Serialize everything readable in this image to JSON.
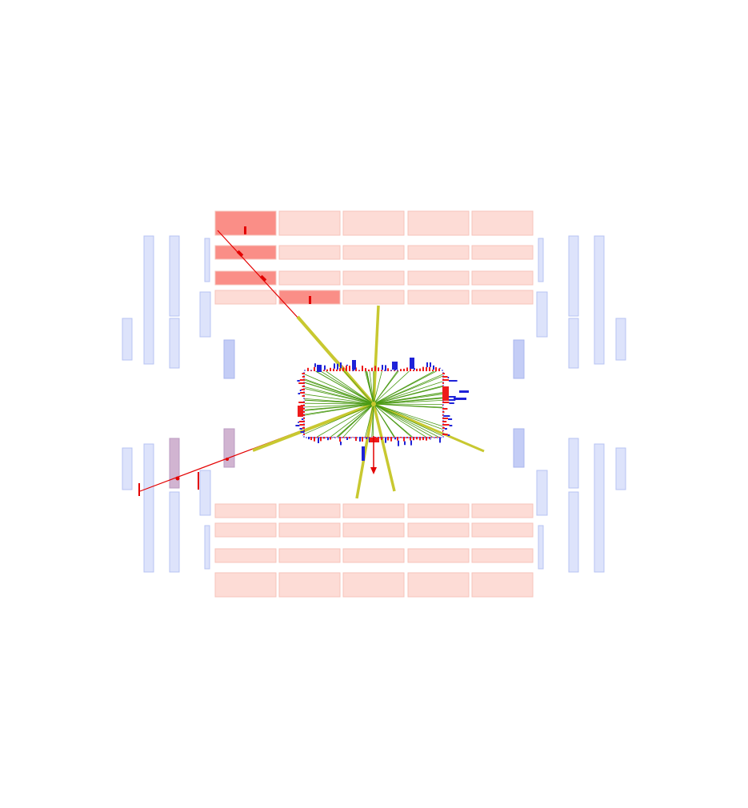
{
  "colors": {
    "background": "#ffffff",
    "muon_chamber": "#dde3fb",
    "muon_chamber_stroke": "#b7c3f3",
    "muon_chamber_dark": "#c4cdf6",
    "muon_hit_chamber": "#c9a7c9",
    "calo_cell": "#fddcd6",
    "calo_cell_stroke": "#f6c3bb",
    "calo_cell_hit": "#fa8e87",
    "muon_track": "#e30000",
    "jet": "#c8c830",
    "track": "#4b9a14",
    "ecal_deposit": "#ee1b1b",
    "hcal_deposit": "#1e22d8",
    "met_arrow": "#e30000"
  },
  "icons": {
    "vertex": "vertex-dot",
    "met": "arrow-down"
  }
}
